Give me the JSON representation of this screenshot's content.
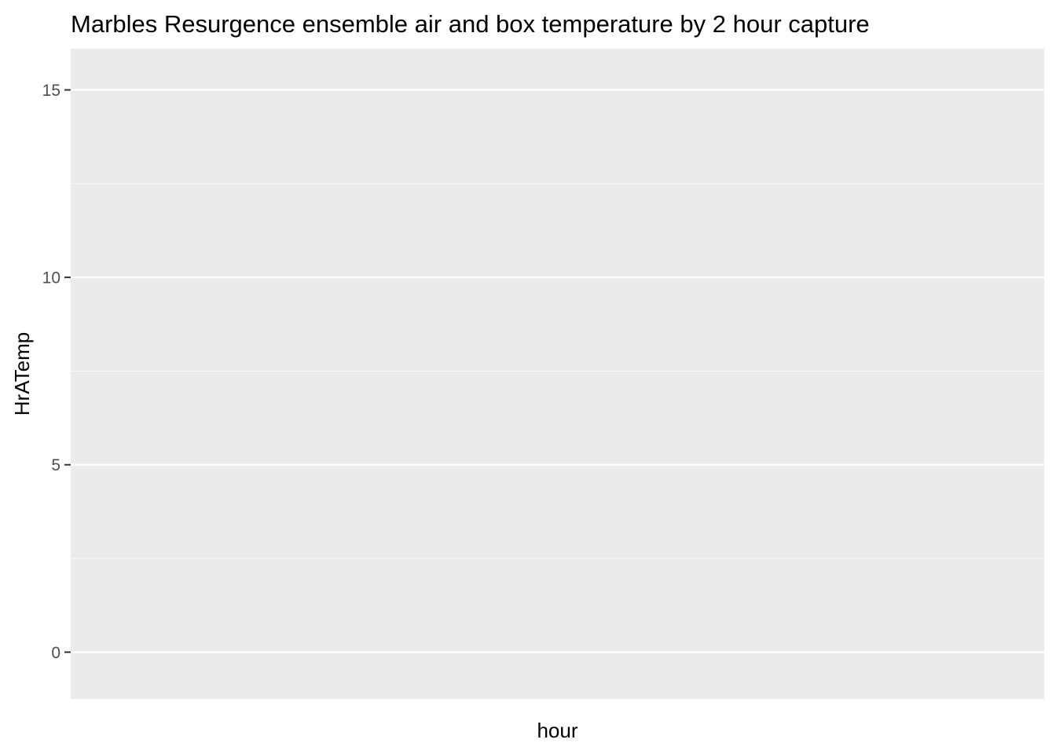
{
  "chart_data": {
    "type": "line",
    "title": "Marbles Resurgence ensemble air and box temperature by 2 hour capture",
    "xlabel": "hour",
    "ylabel": "HrATemp",
    "x": [],
    "series": [],
    "ylim": [
      -1.25,
      16.1
    ],
    "y_ticks": [
      0,
      5,
      10,
      15
    ],
    "y_tick_labels": [
      "0",
      "5",
      "10",
      "15"
    ],
    "y_minor_ticks": [
      2.5,
      7.5,
      12.5
    ],
    "x_ticks": [],
    "grid": true,
    "legend": "none",
    "colors": {
      "panel_background": "#ebebeb",
      "grid_major": "#ffffff",
      "grid_minor": "#f7f7f7",
      "tick_mark": "#333333",
      "tick_label": "#4d4d4d",
      "text": "#000000"
    }
  }
}
